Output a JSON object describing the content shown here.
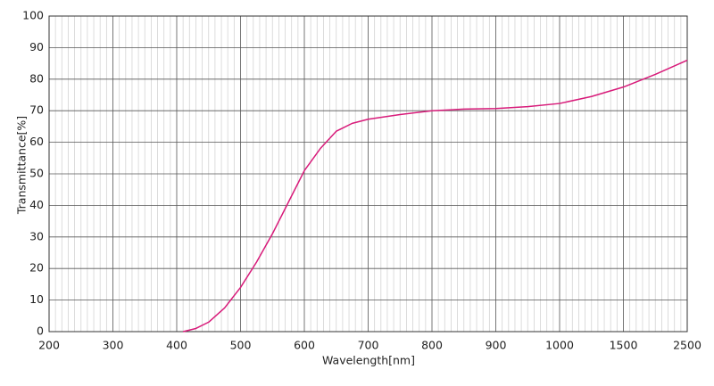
{
  "chart_data": {
    "type": "line",
    "xlabel": "Wavelength[nm]",
    "ylabel": "Transmittance[%]",
    "xticks": [
      200,
      300,
      400,
      500,
      600,
      700,
      800,
      900,
      1000,
      1500,
      2500
    ],
    "xlim": [
      200,
      2500
    ],
    "ylim": [
      0,
      100
    ],
    "yticks": [
      0,
      10,
      20,
      30,
      40,
      50,
      60,
      70,
      80,
      90,
      100
    ],
    "grid": true,
    "series": [
      {
        "color": "#d81b7a",
        "x": [
          410,
          430,
          450,
          475,
          500,
          525,
          550,
          575,
          590,
          600,
          625,
          650,
          675,
          700,
          750,
          800,
          850,
          900,
          950,
          1000,
          1250,
          1500,
          2000,
          2500
        ],
        "values": [
          0,
          1,
          3,
          7.5,
          14,
          22,
          31,
          41,
          47,
          51,
          58,
          63.5,
          66,
          67.3,
          68.8,
          70,
          70.5,
          70.7,
          71.3,
          72.3,
          74.5,
          77.5,
          81.5,
          86
        ]
      }
    ]
  }
}
